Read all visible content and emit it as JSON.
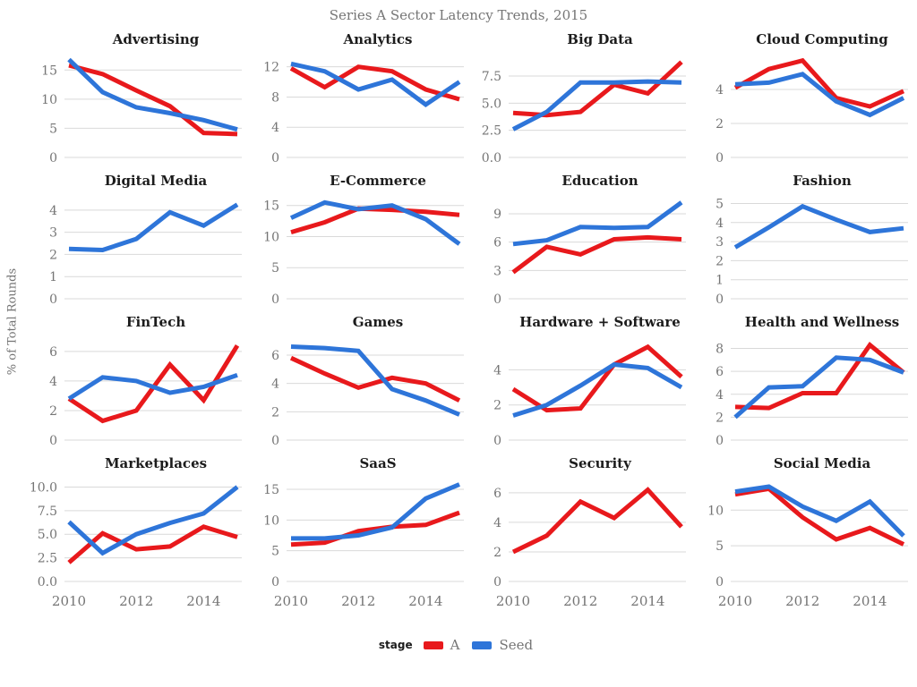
{
  "colors": {
    "A": "#e8191c",
    "Seed": "#2e75d9",
    "grid_line": "#d9d9d9",
    "tick_text": "#757575",
    "panel_title_text": "#1c1c1c",
    "main_title_text": "#757575"
  },
  "chart_data": {
    "type": "line",
    "title": "Series A Sector Latency Trends, 2015",
    "ylabel": "% of Total Rounds",
    "x": [
      2010,
      2011,
      2012,
      2013,
      2014,
      2015
    ],
    "xtick_labels": [
      "2010",
      "2012",
      "2014"
    ],
    "xtick_values": [
      2010,
      2012,
      2014
    ],
    "grid": "horizontal-only",
    "legend": {
      "title": "stage",
      "position": "bottom",
      "entries": [
        {
          "label": "A",
          "color_key": "A"
        },
        {
          "label": "Seed",
          "color_key": "Seed"
        }
      ]
    },
    "panels": [
      {
        "title": "Advertising",
        "ytick_labels": [
          "0",
          "5",
          "10",
          "15"
        ],
        "ytick_values": [
          0,
          5,
          10,
          15
        ],
        "ymax": 17.5,
        "series": [
          {
            "name": "A",
            "values": [
              15.8,
              14.3,
              11.5,
              8.8,
              4.2,
              4.0
            ]
          },
          {
            "name": "Seed",
            "values": [
              16.8,
              11.2,
              8.6,
              7.6,
              6.4,
              4.8
            ]
          }
        ]
      },
      {
        "title": "Analytics",
        "ytick_labels": [
          "0",
          "4",
          "8",
          "12"
        ],
        "ytick_values": [
          0,
          4,
          8,
          12
        ],
        "ymax": 13.5,
        "series": [
          {
            "name": "A",
            "values": [
              11.8,
              9.3,
              12.0,
              11.4,
              9.0,
              7.7
            ]
          },
          {
            "name": "Seed",
            "values": [
              12.4,
              11.4,
              9.0,
              10.3,
              7.0,
              10.0
            ]
          }
        ]
      },
      {
        "title": "Big Data",
        "ytick_labels": [
          "0.0",
          "2.5",
          "5.0",
          "7.5"
        ],
        "ytick_values": [
          0,
          2.5,
          5,
          7.5
        ],
        "ymax": 9.4,
        "series": [
          {
            "name": "A",
            "values": [
              4.1,
              3.9,
              4.2,
              6.7,
              5.9,
              8.8
            ]
          },
          {
            "name": "Seed",
            "values": [
              2.6,
              4.2,
              6.9,
              6.9,
              7.0,
              6.9
            ]
          }
        ]
      },
      {
        "title": "Cloud Computing",
        "ytick_labels": [
          "0",
          "2",
          "4"
        ],
        "ytick_values": [
          0,
          2,
          4
        ],
        "ymax": 6.0,
        "series": [
          {
            "name": "A",
            "values": [
              4.1,
              5.2,
              5.7,
              3.5,
              3.0,
              3.9
            ]
          },
          {
            "name": "Seed",
            "values": [
              4.3,
              4.4,
              4.9,
              3.3,
              2.5,
              3.5
            ]
          }
        ]
      },
      {
        "title": "Digital Media",
        "ytick_labels": [
          "0",
          "1",
          "2",
          "3",
          "4"
        ],
        "ytick_values": [
          0,
          1,
          2,
          3,
          4
        ],
        "ymax": 4.6,
        "series": [
          {
            "name": "Seed",
            "values": [
              2.25,
              2.2,
              2.7,
              3.9,
              3.3,
              4.25
            ]
          }
        ]
      },
      {
        "title": "E-Commerce",
        "ytick_labels": [
          "0",
          "5",
          "10",
          "15"
        ],
        "ytick_values": [
          0,
          5,
          10,
          15
        ],
        "ymax": 16.4,
        "series": [
          {
            "name": "A",
            "values": [
              10.7,
              12.3,
              14.5,
              14.3,
              14.0,
              13.5
            ]
          },
          {
            "name": "Seed",
            "values": [
              13.0,
              15.5,
              14.4,
              15.0,
              12.8,
              8.8
            ]
          }
        ]
      },
      {
        "title": "Education",
        "ytick_labels": [
          "0",
          "3",
          "6",
          "9"
        ],
        "ytick_values": [
          0,
          3,
          6,
          9
        ],
        "ymax": 10.8,
        "series": [
          {
            "name": "A",
            "values": [
              2.8,
              5.5,
              4.7,
              6.3,
              6.5,
              6.3
            ]
          },
          {
            "name": "Seed",
            "values": [
              5.8,
              6.2,
              7.6,
              7.5,
              7.6,
              10.2
            ]
          }
        ]
      },
      {
        "title": "Fashion",
        "ytick_labels": [
          "0",
          "1",
          "2",
          "3",
          "4",
          "5"
        ],
        "ytick_values": [
          0,
          1,
          2,
          3,
          4,
          5
        ],
        "ymax": 5.35,
        "series": [
          {
            "name": "Seed",
            "values": [
              2.7,
              3.75,
              4.85,
              4.15,
              3.5,
              3.7
            ]
          }
        ]
      },
      {
        "title": "FinTech",
        "ytick_labels": [
          "0",
          "2",
          "4",
          "6"
        ],
        "ytick_values": [
          0,
          2,
          4,
          6
        ],
        "ymax": 6.9,
        "series": [
          {
            "name": "A",
            "values": [
              2.8,
              1.3,
              2.0,
              5.1,
              2.7,
              6.4
            ]
          },
          {
            "name": "Seed",
            "values": [
              2.8,
              4.25,
              4.0,
              3.2,
              3.6,
              4.4
            ]
          }
        ]
      },
      {
        "title": "Games",
        "ytick_labels": [
          "0",
          "2",
          "4",
          "6"
        ],
        "ytick_values": [
          0,
          2,
          4,
          6
        ],
        "ymax": 7.2,
        "series": [
          {
            "name": "A",
            "values": [
              5.8,
              4.7,
              3.7,
              4.4,
              4.0,
              2.8
            ]
          },
          {
            "name": "Seed",
            "values": [
              6.6,
              6.5,
              6.3,
              3.6,
              2.8,
              1.8
            ]
          }
        ]
      },
      {
        "title": "Hardware + Software",
        "ytick_labels": [
          "0",
          "2",
          "4"
        ],
        "ytick_values": [
          0,
          2,
          4
        ],
        "ymax": 5.8,
        "series": [
          {
            "name": "A",
            "values": [
              2.9,
              1.7,
              1.8,
              4.3,
              5.3,
              3.6
            ]
          },
          {
            "name": "Seed",
            "values": [
              1.4,
              2.0,
              3.1,
              4.3,
              4.1,
              3.0
            ]
          }
        ]
      },
      {
        "title": "Health and Wellness",
        "ytick_labels": [
          "0",
          "2",
          "4",
          "6",
          "8"
        ],
        "ytick_values": [
          0,
          2,
          4,
          6,
          8
        ],
        "ymax": 8.9,
        "series": [
          {
            "name": "A",
            "values": [
              2.9,
              2.8,
              4.1,
              4.1,
              8.3,
              5.9
            ]
          },
          {
            "name": "Seed",
            "values": [
              2.0,
              4.6,
              4.7,
              7.2,
              7.0,
              5.9
            ]
          }
        ]
      },
      {
        "title": "Marketplaces",
        "ytick_labels": [
          "0.0",
          "2.5",
          "5.0",
          "7.5",
          "10.0"
        ],
        "ytick_values": [
          0,
          2.5,
          5,
          7.5,
          10
        ],
        "ymax": 10.8,
        "series": [
          {
            "name": "A",
            "values": [
              2.0,
              5.1,
              3.4,
              3.7,
              5.8,
              4.7
            ]
          },
          {
            "name": "Seed",
            "values": [
              6.3,
              3.0,
              5.0,
              6.2,
              7.2,
              10.0
            ]
          }
        ]
      },
      {
        "title": "SaaS",
        "ytick_labels": [
          "0",
          "5",
          "10",
          "15"
        ],
        "ytick_values": [
          0,
          5,
          10,
          15
        ],
        "ymax": 16.6,
        "series": [
          {
            "name": "A",
            "values": [
              6.0,
              6.3,
              8.2,
              8.9,
              9.2,
              11.2
            ]
          },
          {
            "name": "Seed",
            "values": [
              7.0,
              7.0,
              7.5,
              8.8,
              13.5,
              15.8
            ]
          }
        ]
      },
      {
        "title": "Security",
        "ytick_labels": [
          "0",
          "2",
          "4",
          "6"
        ],
        "ytick_values": [
          0,
          2,
          4,
          6
        ],
        "ymax": 6.9,
        "series": [
          {
            "name": "A",
            "values": [
              2.0,
              3.1,
              5.4,
              4.3,
              6.2,
              3.7
            ]
          }
        ]
      },
      {
        "title": "Social Media",
        "ytick_labels": [
          "0",
          "5",
          "10"
        ],
        "ytick_values": [
          0,
          5,
          10
        ],
        "ymax": 14.3,
        "series": [
          {
            "name": "A",
            "values": [
              12.2,
              13.0,
              9.0,
              5.9,
              7.5,
              5.2
            ]
          },
          {
            "name": "Seed",
            "values": [
              12.6,
              13.3,
              10.5,
              8.5,
              11.2,
              6.4
            ]
          }
        ]
      }
    ]
  }
}
